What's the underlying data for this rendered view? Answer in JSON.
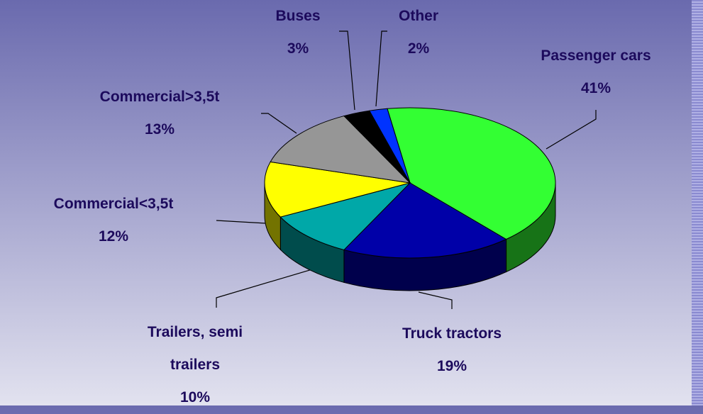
{
  "chart_data": {
    "type": "pie3d",
    "categories": [
      "Passenger cars",
      "Truck tractors",
      "Trailers, semi trailers",
      "Commercial<3,5t",
      "Commercial>3,5t",
      "Buses",
      "Other"
    ],
    "values": [
      41,
      19,
      10,
      12,
      13,
      3,
      2
    ],
    "value_labels": [
      "41%",
      "19%",
      "10%",
      "12%",
      "13%",
      "3%",
      "2%"
    ],
    "colors": [
      "#33ff33",
      "#0000a8",
      "#00a8a8",
      "#ffff00",
      "#969696",
      "#000000",
      "#0033ff"
    ]
  }
}
